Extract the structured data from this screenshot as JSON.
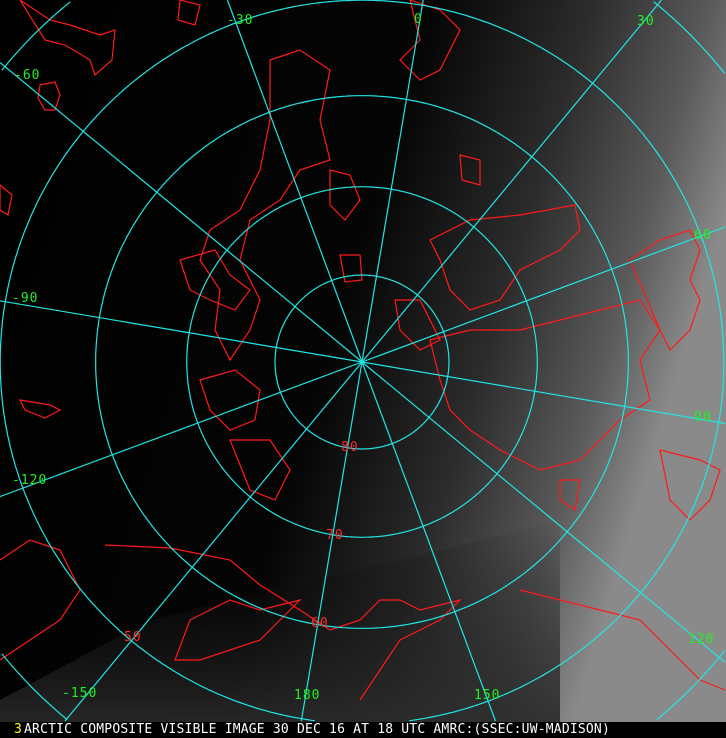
{
  "frame_number": "3",
  "caption": "ARCTIC COMPOSITE VISIBLE IMAGE 30 DEC 16 AT 18 UTC AMRC:(SSEC:UW-MADISON)",
  "colors": {
    "graticule": "#22e5e5",
    "coastline": "#ff1a1a",
    "longitude_label": "#22ee22",
    "latitude_label": "#ff2a2a",
    "frame_number": "#ffff00",
    "caption_text": "#ffffff"
  },
  "projection": "polar stereographic, north pole",
  "graticule": {
    "latitudes": [
      80,
      70,
      60,
      50,
      40
    ],
    "longitudes": [
      0,
      30,
      60,
      90,
      120,
      150,
      180,
      -150,
      -120,
      -90,
      -60,
      -30
    ]
  },
  "latitude_labels": [
    "80",
    "70",
    "60",
    "50"
  ],
  "longitude_labels": [
    "0",
    "30",
    "60",
    "90",
    "120",
    "150",
    "180",
    "-150",
    "-120",
    "-90",
    "-60",
    "-30"
  ]
}
